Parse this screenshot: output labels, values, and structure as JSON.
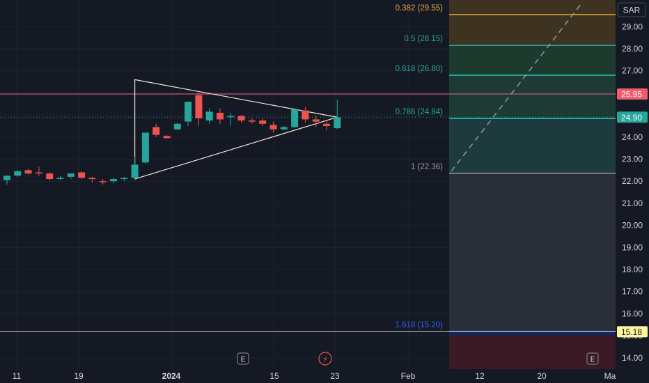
{
  "chart_data": {
    "type": "candlestick",
    "currency": "SAR",
    "y_range": [
      13.9,
      30.05
    ],
    "price_ticks": [
      "29.00",
      "28.00",
      "27.00",
      "26.00",
      "25.00",
      "24.00",
      "23.00",
      "22.00",
      "21.00",
      "20.00",
      "19.00",
      "18.00",
      "17.00",
      "16.00",
      "15.00",
      "14.00"
    ],
    "x_ticks": [
      "11",
      "19",
      "2024",
      "15",
      "23",
      "Feb",
      "12",
      "20",
      "Ma"
    ],
    "candles": [
      {
        "o": 22.05,
        "h": 22.25,
        "l": 21.85,
        "c": 22.25
      },
      {
        "o": 22.25,
        "h": 22.5,
        "l": 22.2,
        "c": 22.45
      },
      {
        "o": 22.5,
        "h": 22.55,
        "l": 22.3,
        "c": 22.35
      },
      {
        "o": 22.4,
        "h": 22.65,
        "l": 22.25,
        "c": 22.35
      },
      {
        "o": 22.35,
        "h": 22.4,
        "l": 22.05,
        "c": 22.1
      },
      {
        "o": 22.1,
        "h": 22.25,
        "l": 22.05,
        "c": 22.15
      },
      {
        "o": 22.2,
        "h": 22.35,
        "l": 22.1,
        "c": 22.35
      },
      {
        "o": 22.4,
        "h": 22.45,
        "l": 22.1,
        "c": 22.15
      },
      {
        "o": 22.15,
        "h": 22.2,
        "l": 21.95,
        "c": 22.1
      },
      {
        "o": 22.0,
        "h": 22.1,
        "l": 21.85,
        "c": 21.95
      },
      {
        "o": 22.0,
        "h": 22.15,
        "l": 21.9,
        "c": 22.1
      },
      {
        "o": 22.1,
        "h": 22.2,
        "l": 22.0,
        "c": 22.15
      },
      {
        "o": 22.15,
        "h": 23.1,
        "l": 22.05,
        "c": 22.75
      },
      {
        "o": 22.85,
        "h": 24.2,
        "l": 22.8,
        "c": 24.2
      },
      {
        "o": 24.45,
        "h": 24.6,
        "l": 24.0,
        "c": 24.1
      },
      {
        "o": 24.05,
        "h": 24.1,
        "l": 23.9,
        "c": 23.95
      },
      {
        "o": 24.35,
        "h": 24.65,
        "l": 24.3,
        "c": 24.6
      },
      {
        "o": 24.7,
        "h": 25.6,
        "l": 24.5,
        "c": 25.6
      },
      {
        "o": 25.9,
        "h": 26.05,
        "l": 24.5,
        "c": 24.85
      },
      {
        "o": 24.75,
        "h": 25.3,
        "l": 24.6,
        "c": 25.15
      },
      {
        "o": 25.1,
        "h": 25.3,
        "l": 24.6,
        "c": 24.8
      },
      {
        "o": 24.95,
        "h": 25.1,
        "l": 24.5,
        "c": 24.95
      },
      {
        "o": 24.95,
        "h": 25.0,
        "l": 24.65,
        "c": 24.75
      },
      {
        "o": 24.75,
        "h": 24.85,
        "l": 24.6,
        "c": 24.7
      },
      {
        "o": 24.75,
        "h": 24.85,
        "l": 24.5,
        "c": 24.6
      },
      {
        "o": 24.55,
        "h": 24.7,
        "l": 24.2,
        "c": 24.35
      },
      {
        "o": 24.35,
        "h": 24.5,
        "l": 24.3,
        "c": 24.45
      },
      {
        "o": 24.45,
        "h": 25.25,
        "l": 24.4,
        "c": 25.25
      },
      {
        "o": 25.2,
        "h": 25.35,
        "l": 24.65,
        "c": 24.8
      },
      {
        "o": 24.8,
        "h": 24.95,
        "l": 24.45,
        "c": 24.7
      },
      {
        "o": 24.6,
        "h": 24.75,
        "l": 24.3,
        "c": 24.5
      },
      {
        "o": 24.4,
        "h": 25.7,
        "l": 24.35,
        "c": 24.9
      }
    ],
    "fib_levels": [
      {
        "label": "0.382 (29.55)",
        "price": 29.55,
        "color": "#e6a23c",
        "text_color": "#e6a23c",
        "fill": "#3d3320"
      },
      {
        "label": "0.5 (28.15)",
        "price": 28.15,
        "color": "#26a69a",
        "text_color": "#26a69a",
        "fill": "#1d3a2e"
      },
      {
        "label": "0.618 (26.80)",
        "price": 26.8,
        "color": "#26c6b0",
        "text_color": "#26a69a",
        "fill": "#1d3a35"
      },
      {
        "label": "0.786 (24.84)",
        "price": 24.84,
        "color": "#26c6b0",
        "text_color": "#26a69a",
        "fill": "#1d3a3d"
      },
      {
        "label": "1 (22.36)",
        "price": 22.36,
        "color": "#9598a1",
        "text_color": "#9598a1",
        "fill": "#2a2e39"
      },
      {
        "label": "1.618 (15.20)",
        "price": 15.2,
        "color": "#2962ff",
        "text_color": "#2962ff",
        "fill": "#1a2550"
      },
      {
        "label": "",
        "price": 13.9,
        "color": "#7a2a3a",
        "text_color": "#7a2a3a",
        "fill": "#3a1a24"
      }
    ],
    "horizontal_lines": [
      {
        "price": 25.95,
        "color": "#f06292"
      },
      {
        "price": 15.18,
        "color": "#d1d4dc"
      }
    ],
    "price_badges": [
      {
        "text": "25.95",
        "price": 25.95,
        "bg": "#f05a6a",
        "fg": "#ffffff"
      },
      {
        "text": "24.90",
        "price": 24.9,
        "bg": "#26a69a",
        "fg": "#ffffff"
      },
      {
        "text": "15.18",
        "price": 15.18,
        "bg": "#fff59d",
        "fg": "#131722"
      }
    ],
    "current_price": 24.9,
    "triangle": {
      "color": "#f0e6d2",
      "points": [
        [
          12,
          26.6
        ],
        [
          12,
          22.1
        ],
        [
          31,
          24.9
        ]
      ],
      "apex_top": [
        17,
        25.95
      ]
    },
    "event_markers": [
      "E",
      "⚡",
      "E"
    ],
    "colors": {
      "up": "#26a69a",
      "down": "#ef5350",
      "bg": "#151924",
      "grid": "#1f2330",
      "axis_text": "#d1d4dc"
    }
  }
}
